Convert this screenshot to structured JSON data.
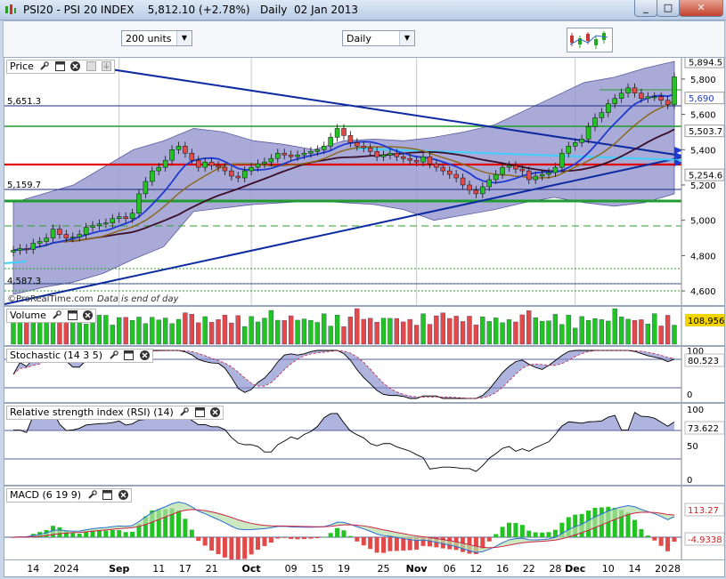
{
  "window": {
    "title": "PSI20 - PSI 20 INDEX",
    "last": "5,812.10",
    "change": "(+2.78%)",
    "period": "Daily",
    "date": "02 Jan 2013",
    "buttons": [
      "_",
      "□",
      "✕"
    ]
  },
  "toolbar": {
    "units_select": "200 units",
    "period_select": "Daily",
    "chart_type_icon": "candlestick-chart-icon"
  },
  "colors": {
    "bg": "#ffffff",
    "band_fill": "#9a9bd0",
    "up": "#22c322",
    "down": "#e24a4a",
    "ma_short": "#1f3bd1",
    "ma_long": "#3a0f2a",
    "ma_mid": "#8b6a20",
    "support_red": "#e00000",
    "green_line": "#1f9c2f",
    "trend_blue": "#0d2aa0",
    "cyan": "#3fd0ff"
  },
  "price_panel": {
    "label": "Price",
    "watermark": "©ProRealTime.com",
    "note": "Data is end of day",
    "left_levels": [
      "5,651.3",
      "5,159.7",
      "4,587.3"
    ],
    "axis_ticks": [
      "5,800",
      "5,600",
      "5,400",
      "5,200",
      "5,000",
      "4,800",
      "4,600"
    ],
    "axis_labels": [
      "5,894.5",
      "5,690",
      "5,503.7",
      "5,254.6"
    ]
  },
  "volume_panel": {
    "label": "Volume",
    "value": "108,956"
  },
  "stochastic_panel": {
    "label": "Stochastic (14 3 5)",
    "ticks": [
      "100",
      "0"
    ],
    "value": "80.523"
  },
  "rsi_panel": {
    "label": "Relative strength index (RSI) (14)",
    "ticks": [
      "100",
      "50",
      "0"
    ],
    "value": "73.622"
  },
  "macd_panel": {
    "label": "MACD (6 19 9)",
    "value_a": "113.27",
    "value_b": "-4.9338"
  },
  "x_axis": {
    "labels": [
      "14",
      "20",
      "24",
      "Sep",
      "11",
      "17",
      "21",
      "Oct",
      "09",
      "15",
      "19",
      "25",
      "Nov",
      "06",
      "12",
      "16",
      "22",
      "28",
      "Dec",
      "10",
      "14",
      "20",
      "28"
    ]
  },
  "chart_data": {
    "type": "candlestick",
    "x": [
      "Aug 10",
      "Aug 13",
      "Aug 14",
      "Aug 15",
      "Aug 16",
      "Aug 17",
      "Aug 20",
      "Aug 21",
      "Aug 22",
      "Aug 23",
      "Aug 24",
      "Aug 27",
      "Aug 28",
      "Aug 29",
      "Aug 30",
      "Aug 31",
      "Sep 3",
      "Sep 4",
      "Sep 5",
      "Sep 6",
      "Sep 7",
      "Sep 10",
      "Sep 11",
      "Sep 12",
      "Sep 13",
      "Sep 14",
      "Sep 17",
      "Sep 18",
      "Sep 19",
      "Sep 20",
      "Sep 21",
      "Sep 24",
      "Sep 25",
      "Sep 26",
      "Sep 27",
      "Sep 28",
      "Oct 1",
      "Oct 2",
      "Oct 3",
      "Oct 4",
      "Oct 5",
      "Oct 8",
      "Oct 9",
      "Oct 10",
      "Oct 11",
      "Oct 12",
      "Oct 15",
      "Oct 16",
      "Oct 17",
      "Oct 18",
      "Oct 19",
      "Oct 22",
      "Oct 23",
      "Oct 24",
      "Oct 25",
      "Oct 26",
      "Oct 29",
      "Oct 30",
      "Oct 31",
      "Nov 1",
      "Nov 2",
      "Nov 5",
      "Nov 6",
      "Nov 7",
      "Nov 8",
      "Nov 9",
      "Nov 12",
      "Nov 13",
      "Nov 14",
      "Nov 15",
      "Nov 16",
      "Nov 19",
      "Nov 20",
      "Nov 21",
      "Nov 22",
      "Nov 23",
      "Nov 26",
      "Nov 27",
      "Nov 28",
      "Nov 29",
      "Nov 30",
      "Dec 3",
      "Dec 4",
      "Dec 5",
      "Dec 6",
      "Dec 7",
      "Dec 10",
      "Dec 11",
      "Dec 12",
      "Dec 13",
      "Dec 14",
      "Dec 17",
      "Dec 18",
      "Dec 19",
      "Dec 20",
      "Dec 21",
      "Dec 24",
      "Dec 26",
      "Dec 27",
      "Dec 28",
      "Jan 2"
    ],
    "close": [
      4830,
      4840,
      4835,
      4870,
      4880,
      4900,
      4950,
      4920,
      4900,
      4905,
      4920,
      4960,
      4970,
      4980,
      4985,
      5010,
      5020,
      5010,
      5040,
      5150,
      5220,
      5280,
      5300,
      5340,
      5400,
      5420,
      5380,
      5340,
      5300,
      5330,
      5310,
      5300,
      5280,
      5250,
      5240,
      5280,
      5300,
      5320,
      5330,
      5350,
      5380,
      5370,
      5360,
      5370,
      5380,
      5390,
      5400,
      5420,
      5470,
      5520,
      5480,
      5440,
      5420,
      5410,
      5390,
      5360,
      5370,
      5380,
      5360,
      5350,
      5340,
      5330,
      5360,
      5320,
      5300,
      5280,
      5260,
      5240,
      5200,
      5170,
      5150,
      5190,
      5230,
      5260,
      5300,
      5310,
      5290,
      5280,
      5230,
      5250,
      5260,
      5270,
      5300,
      5380,
      5420,
      5440,
      5460,
      5530,
      5580,
      5610,
      5660,
      5690,
      5720,
      5750,
      5720,
      5690,
      5700,
      5700,
      5680,
      5655,
      5812
    ],
    "bollinger_upper": [
      5100,
      5150,
      5200,
      5300,
      5400,
      5450,
      5520,
      5500,
      5450,
      5430,
      5400,
      5450,
      5460,
      5450,
      5470,
      5500,
      5540,
      5620,
      5700,
      5780,
      5810,
      5860,
      5900
    ],
    "bollinger_lower": [
      4580,
      4620,
      4650,
      4700,
      4780,
      4850,
      5050,
      5070,
      5090,
      5100,
      5110,
      5100,
      5090,
      5060,
      5000,
      5030,
      5060,
      5100,
      5130,
      5100,
      5080,
      5100,
      5150
    ],
    "levels": {
      "resistance_1": 5651.3,
      "support_green": 5540,
      "support_red": 5300,
      "support_2": 5159.7,
      "support_3": 5090,
      "low_mark": 4587.3
    },
    "ylim": [
      4520,
      5920
    ]
  }
}
